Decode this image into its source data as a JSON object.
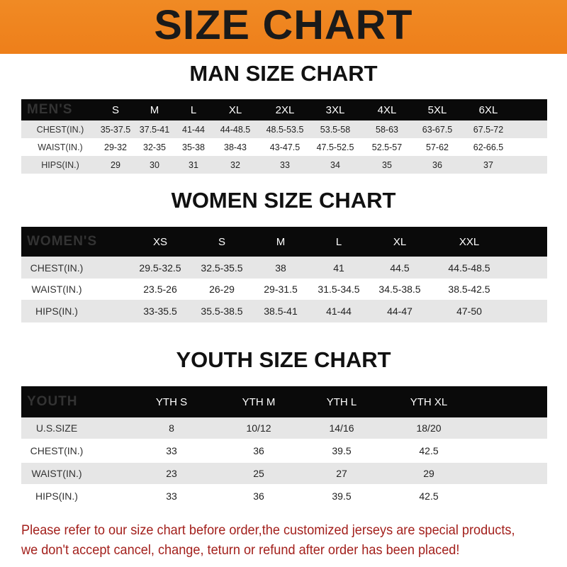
{
  "banner": {
    "title": "SIZE CHART",
    "color": "#ef841f"
  },
  "men": {
    "title": "MAN SIZE CHART",
    "header": [
      "MEN'S",
      "S",
      "M",
      "L",
      "XL",
      "2XL",
      "3XL",
      "4XL",
      "5XL",
      "6XL"
    ],
    "rows": [
      [
        "CHEST(IN.)",
        "35-37.5",
        "37.5-41",
        "41-44",
        "44-48.5",
        "48.5-53.5",
        "53.5-58",
        "58-63",
        "63-67.5",
        "67.5-72"
      ],
      [
        "WAIST(IN.)",
        "29-32",
        "32-35",
        "35-38",
        "38-43",
        "43-47.5",
        "47.5-52.5",
        "52.5-57",
        "57-62",
        "62-66.5"
      ],
      [
        "HIPS(IN.)",
        "29",
        "30",
        "31",
        "32",
        "33",
        "34",
        "35",
        "36",
        "37"
      ]
    ]
  },
  "women": {
    "title": "WOMEN SIZE CHART",
    "header": [
      "WOMEN'S",
      "XS",
      "S",
      "M",
      "L",
      "XL",
      "XXL"
    ],
    "rows": [
      [
        "CHEST(IN.)",
        "29.5-32.5",
        "32.5-35.5",
        "38",
        "41",
        "44.5",
        "44.5-48.5"
      ],
      [
        "WAIST(IN.)",
        "23.5-26",
        "26-29",
        "29-31.5",
        "31.5-34.5",
        "34.5-38.5",
        "38.5-42.5"
      ],
      [
        "HIPS(IN.)",
        "33-35.5",
        "35.5-38.5",
        "38.5-41",
        "41-44",
        "44-47",
        "47-50"
      ]
    ]
  },
  "youth": {
    "title": "YOUTH SIZE CHART",
    "header": [
      "YOUTH",
      "YTH S",
      "YTH M",
      "YTH L",
      "YTH XL"
    ],
    "rows": [
      [
        "U.S.SIZE",
        "8",
        "10/12",
        "14/16",
        "18/20"
      ],
      [
        "CHEST(IN.)",
        "33",
        "36",
        "39.5",
        "42.5"
      ],
      [
        "WAIST(IN.)",
        "23",
        "25",
        "27",
        "29"
      ],
      [
        "HIPS(IN.)",
        "33",
        "36",
        "39.5",
        "42.5"
      ]
    ]
  },
  "footer": {
    "line1": "Please refer to our size chart before order,the customized jerseys are special products,",
    "line2": "we don't accept cancel, change, teturn or refund after order has been placed!",
    "color": "#a3201c"
  }
}
